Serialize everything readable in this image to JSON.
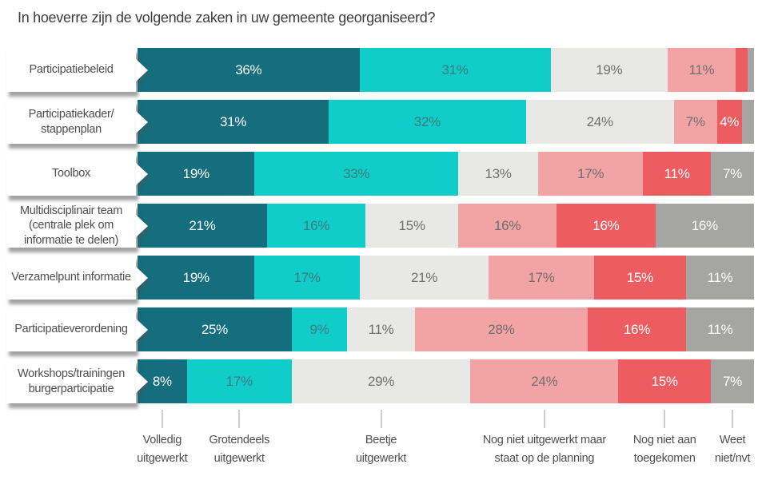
{
  "chart_data": {
    "type": "bar",
    "orientation": "horizontal_stacked",
    "title": "In hoeverre zijn de volgende zaken in uw gemeente georganiseerd?",
    "unit": "%",
    "xlim": [
      0,
      100
    ],
    "grid": false,
    "legend_position": "bottom",
    "series": [
      {
        "name": "Volledig uitgewerkt",
        "color": "#156e7d",
        "label_color": "#ffffff",
        "legend_lines": [
          "Volledig",
          "uitgewerkt"
        ]
      },
      {
        "name": "Grotendeels uitgewerkt",
        "color": "#10cdc9",
        "label_color": "#3d7c7c",
        "legend_lines": [
          "Grotendeels",
          "uitgewerkt"
        ]
      },
      {
        "name": "Beetje uitgewerkt",
        "color": "#e8e8e7",
        "label_color": "#6f6f6f",
        "legend_lines": [
          "Beetje",
          "uitgewerkt"
        ]
      },
      {
        "name": "Nog niet uitgewerkt maar staat op de planning",
        "color": "#f2a3a4",
        "label_color": "#6f6f6f",
        "legend_lines": [
          "Nog niet uitgewerkt maar",
          "staat op de planning"
        ]
      },
      {
        "name": "Nog niet aan toegekomen",
        "color": "#ed5c60",
        "label_color": "#ffffff",
        "legend_lines": [
          "Nog niet aan",
          "toegekomen"
        ]
      },
      {
        "name": "Weet niet/nvt",
        "color": "#a5a5a4",
        "label_color": "#ffffff",
        "legend_lines": [
          "Weet",
          "niet/nvt"
        ]
      }
    ],
    "categories": [
      [
        "Participatiebeleid"
      ],
      [
        "Participatiekader/",
        "stappenplan"
      ],
      [
        "Toolbox"
      ],
      [
        "Multidisciplinair team",
        "(centrale plek om",
        "informatie te delen)"
      ],
      [
        "Verzamelpunt informatie"
      ],
      [
        "Participatieverordening"
      ],
      [
        "Workshops/trainingen",
        "burgerparticipatie"
      ]
    ],
    "rows": [
      {
        "values": [
          36,
          31,
          19,
          11,
          2,
          1
        ],
        "labels": [
          "36%",
          "31%",
          "19%",
          "11%",
          "",
          ""
        ]
      },
      {
        "values": [
          31,
          32,
          24,
          7,
          4,
          2
        ],
        "labels": [
          "31%",
          "32%",
          "24%",
          "7%",
          "4%",
          ""
        ]
      },
      {
        "values": [
          19,
          33,
          13,
          17,
          11,
          7
        ],
        "labels": [
          "19%",
          "33%",
          "13%",
          "17%",
          "11%",
          "7%"
        ]
      },
      {
        "values": [
          21,
          16,
          15,
          16,
          16,
          16
        ],
        "labels": [
          "21%",
          "16%",
          "15%",
          "16%",
          "16%",
          "16%"
        ]
      },
      {
        "values": [
          19,
          17,
          21,
          17,
          15,
          11
        ],
        "labels": [
          "19%",
          "17%",
          "21%",
          "17%",
          "15%",
          "11%"
        ]
      },
      {
        "values": [
          25,
          9,
          11,
          28,
          16,
          11
        ],
        "labels": [
          "25%",
          "9%",
          "11%",
          "28%",
          "16%",
          "11%"
        ]
      },
      {
        "values": [
          8,
          17,
          29,
          24,
          15,
          7
        ],
        "labels": [
          "8%",
          "17%",
          "29%",
          "24%",
          "15%",
          "7%"
        ]
      }
    ],
    "legend_anchor_row": 6
  }
}
